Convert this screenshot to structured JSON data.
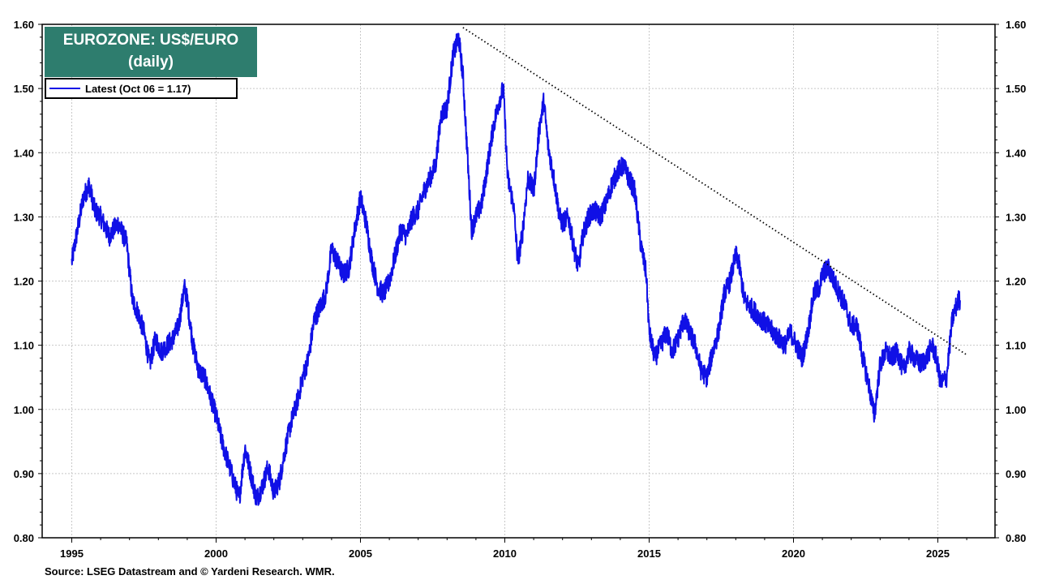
{
  "chart_data": {
    "type": "line",
    "title": "EUROZONE: US$/EURO",
    "subtitle": "(daily)",
    "legend_label": "Latest (Oct 06 = 1.17)",
    "source": "Source: LSEG Datastream and © Yardeni Research. WMR.",
    "x_ticks": [
      "1995",
      "2000",
      "2005",
      "2010",
      "2015",
      "2020",
      "2025"
    ],
    "y_ticks": [
      "0.80",
      "0.90",
      "1.00",
      "1.10",
      "1.20",
      "1.30",
      "1.40",
      "1.50",
      "1.60"
    ],
    "xlim": [
      1995.0,
      2027.0
    ],
    "ylim": [
      0.8,
      1.6
    ],
    "grid": true,
    "colors": {
      "series": "#1010e6",
      "title_bg": "#2e7d6e",
      "trendline": "#000000"
    },
    "series": [
      {
        "name": "Latest (Oct 06 = 1.17)",
        "x": [
          1995.0,
          1995.2,
          1995.4,
          1995.6,
          1995.8,
          1996.0,
          1996.3,
          1996.6,
          1996.9,
          1997.1,
          1997.3,
          1997.5,
          1997.7,
          1997.9,
          1998.1,
          1998.3,
          1998.5,
          1998.7,
          1998.9,
          1999.0,
          1999.2,
          1999.4,
          1999.6,
          1999.8,
          2000.0,
          2000.2,
          2000.4,
          2000.6,
          2000.8,
          2001.0,
          2001.2,
          2001.4,
          2001.6,
          2001.8,
          2002.0,
          2002.2,
          2002.4,
          2002.6,
          2002.8,
          2003.0,
          2003.2,
          2003.4,
          2003.6,
          2003.8,
          2004.0,
          2004.2,
          2004.4,
          2004.6,
          2004.8,
          2005.0,
          2005.2,
          2005.4,
          2005.6,
          2005.8,
          2006.0,
          2006.2,
          2006.4,
          2006.6,
          2006.8,
          2007.0,
          2007.2,
          2007.4,
          2007.6,
          2007.8,
          2008.0,
          2008.2,
          2008.4,
          2008.55,
          2008.7,
          2008.85,
          2009.0,
          2009.2,
          2009.4,
          2009.6,
          2009.8,
          2009.95,
          2010.1,
          2010.3,
          2010.45,
          2010.6,
          2010.8,
          2011.0,
          2011.2,
          2011.35,
          2011.5,
          2011.7,
          2011.9,
          2012.0,
          2012.2,
          2012.4,
          2012.55,
          2012.7,
          2012.9,
          2013.1,
          2013.3,
          2013.5,
          2013.7,
          2013.9,
          2014.1,
          2014.3,
          2014.5,
          2014.7,
          2014.9,
          2015.0,
          2015.2,
          2015.4,
          2015.6,
          2015.8,
          2016.0,
          2016.2,
          2016.4,
          2016.6,
          2016.8,
          2017.0,
          2017.2,
          2017.4,
          2017.6,
          2017.8,
          2018.0,
          2018.1,
          2018.3,
          2018.5,
          2018.7,
          2018.9,
          2019.1,
          2019.3,
          2019.5,
          2019.7,
          2019.9,
          2020.1,
          2020.3,
          2020.5,
          2020.7,
          2020.9,
          2021.0,
          2021.2,
          2021.4,
          2021.6,
          2021.8,
          2022.0,
          2022.2,
          2022.4,
          2022.6,
          2022.8,
          2023.0,
          2023.2,
          2023.4,
          2023.6,
          2023.8,
          2024.0,
          2024.2,
          2024.4,
          2024.6,
          2024.8,
          2024.95,
          2025.1,
          2025.3,
          2025.5,
          2025.7,
          2025.77
        ],
        "values": [
          1.23,
          1.28,
          1.33,
          1.35,
          1.31,
          1.3,
          1.27,
          1.29,
          1.26,
          1.17,
          1.15,
          1.12,
          1.07,
          1.11,
          1.09,
          1.1,
          1.11,
          1.13,
          1.19,
          1.17,
          1.1,
          1.06,
          1.05,
          1.02,
          0.99,
          0.95,
          0.92,
          0.89,
          0.86,
          0.94,
          0.9,
          0.86,
          0.88,
          0.91,
          0.87,
          0.89,
          0.94,
          0.98,
          1.01,
          1.05,
          1.08,
          1.14,
          1.16,
          1.18,
          1.25,
          1.23,
          1.21,
          1.22,
          1.28,
          1.33,
          1.29,
          1.23,
          1.19,
          1.18,
          1.2,
          1.24,
          1.28,
          1.27,
          1.3,
          1.31,
          1.34,
          1.36,
          1.38,
          1.46,
          1.47,
          1.55,
          1.58,
          1.52,
          1.4,
          1.28,
          1.3,
          1.32,
          1.38,
          1.44,
          1.48,
          1.5,
          1.36,
          1.32,
          1.23,
          1.27,
          1.36,
          1.34,
          1.44,
          1.48,
          1.41,
          1.36,
          1.3,
          1.29,
          1.3,
          1.25,
          1.22,
          1.27,
          1.3,
          1.31,
          1.3,
          1.32,
          1.35,
          1.37,
          1.38,
          1.36,
          1.34,
          1.26,
          1.21,
          1.12,
          1.08,
          1.1,
          1.12,
          1.09,
          1.11,
          1.14,
          1.12,
          1.1,
          1.06,
          1.05,
          1.09,
          1.12,
          1.18,
          1.2,
          1.24,
          1.23,
          1.17,
          1.16,
          1.15,
          1.14,
          1.13,
          1.12,
          1.11,
          1.1,
          1.12,
          1.1,
          1.08,
          1.12,
          1.18,
          1.19,
          1.21,
          1.22,
          1.2,
          1.18,
          1.16,
          1.13,
          1.13,
          1.08,
          1.04,
          0.99,
          1.07,
          1.09,
          1.08,
          1.09,
          1.06,
          1.09,
          1.08,
          1.07,
          1.08,
          1.1,
          1.08,
          1.04,
          1.05,
          1.14,
          1.17,
          1.17
        ]
      }
    ],
    "trendline": {
      "x": [
        2008.55,
        2026.0
      ],
      "y": [
        1.595,
        1.085
      ],
      "style": "dotted"
    }
  }
}
